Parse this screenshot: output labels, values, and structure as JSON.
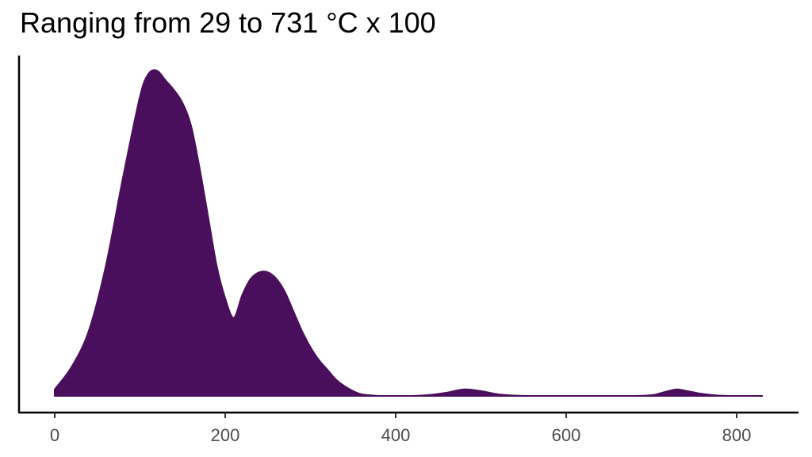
{
  "chart_data": {
    "type": "area",
    "title": "Ranging from 29 to 731 °C x 100",
    "xlabel": "",
    "ylabel": "",
    "xlim": [
      -10,
      835
    ],
    "ylim": [
      0,
      1.02
    ],
    "x_ticks": [
      0,
      200,
      400,
      600,
      800
    ],
    "y_ticks": [],
    "grid": false,
    "legend": "none",
    "fill_color": "#4a0f5c",
    "series": [
      {
        "x": [
          0,
          20,
          40,
          60,
          80,
          100,
          110,
          120,
          130,
          140,
          150,
          160,
          170,
          180,
          190,
          200,
          210,
          220,
          230,
          240,
          250,
          260,
          270,
          280,
          290,
          300,
          310,
          320,
          330,
          340,
          350,
          360,
          370,
          380,
          400,
          420,
          440,
          460,
          480,
          500,
          520,
          540,
          560,
          600,
          640,
          680,
          700,
          710,
          720,
          730,
          740,
          760,
          780,
          800,
          830
        ],
        "values": [
          0.02,
          0.09,
          0.2,
          0.4,
          0.67,
          0.92,
          0.99,
          1.0,
          0.97,
          0.94,
          0.9,
          0.83,
          0.7,
          0.55,
          0.4,
          0.3,
          0.24,
          0.31,
          0.36,
          0.38,
          0.38,
          0.36,
          0.32,
          0.26,
          0.2,
          0.15,
          0.11,
          0.08,
          0.05,
          0.03,
          0.015,
          0.005,
          0.002,
          0.0,
          0.0,
          0.0,
          0.003,
          0.01,
          0.02,
          0.015,
          0.005,
          0.001,
          0.0,
          0.0,
          0.0,
          0.0,
          0.002,
          0.008,
          0.015,
          0.02,
          0.016,
          0.006,
          0.001,
          0.0,
          0.0
        ]
      }
    ]
  }
}
